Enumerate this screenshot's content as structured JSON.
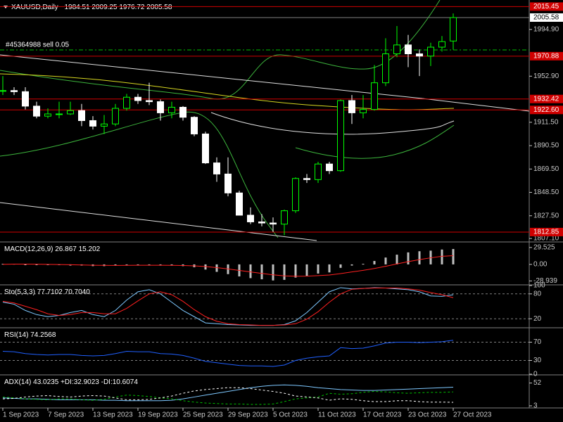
{
  "chart_data": [
    {
      "type": "candlestick",
      "title": "XAUUSD,Daily",
      "open": [
        1940,
        1940,
        1939,
        1926,
        1917,
        1919,
        1919,
        1922,
        1913,
        1908,
        1910,
        1924,
        1934,
        1931,
        1930,
        1920,
        1925,
        1916,
        1901,
        1875,
        1865,
        1848,
        1828,
        1822,
        1821,
        1820,
        1832,
        1861,
        1860,
        1874,
        1868,
        1931,
        1920,
        1923,
        1947,
        1973,
        1981,
        1973,
        1971,
        1979,
        1984.51
      ],
      "high": [
        1953,
        1943,
        1943,
        1930,
        1924,
        1930,
        1930,
        1928,
        1917,
        1918,
        1928,
        1937,
        1937,
        1947,
        1932,
        1930,
        1926,
        1917,
        1903,
        1880,
        1880,
        1850,
        1835,
        1829,
        1826,
        1833,
        1862,
        1865,
        1876,
        1876,
        1932,
        1936,
        1936,
        1963,
        1987,
        1998,
        1990,
        1977,
        1983,
        1989,
        2009.25
      ],
      "low": [
        1936,
        1936,
        1923,
        1915,
        1915,
        1915,
        1918,
        1908,
        1905,
        1901,
        1908,
        1922,
        1928,
        1927,
        1913,
        1915,
        1913,
        1899,
        1874,
        1858,
        1845,
        1828,
        1820,
        1818,
        1813,
        1810,
        1830,
        1857,
        1857,
        1865,
        1867,
        1910,
        1915,
        1922,
        1944,
        1970,
        1961,
        1953,
        1962,
        1975,
        1976.72
      ],
      "close": [
        1940,
        1939,
        1926,
        1917,
        1919,
        1919,
        1922,
        1913,
        1908,
        1910,
        1924,
        1934,
        1931,
        1930,
        1920,
        1925,
        1916,
        1901,
        1875,
        1865,
        1848,
        1828,
        1822,
        1821,
        1820,
        1832,
        1861,
        1860,
        1874,
        1868,
        1931,
        1920,
        1923,
        1947,
        1973,
        1981,
        1973,
        1971,
        1979,
        1984,
        2005.58
      ],
      "bull_color": "#00ff00",
      "bear_color": "#ffffff",
      "ylim": [
        1804.6,
        2020.1
      ],
      "yticks": [
        {
          "value": 1994.9,
          "label": "1994.90"
        },
        {
          "value": 1952.9,
          "label": "1952.90"
        },
        {
          "value": 1911.5,
          "label": "1911.50"
        },
        {
          "value": 1890.5,
          "label": "1890.50"
        },
        {
          "value": 1869.5,
          "label": "1869.50"
        },
        {
          "value": 1848.5,
          "label": "1848.50"
        },
        {
          "value": 1827.5,
          "label": "1827.50"
        },
        {
          "value": 1807.1,
          "label": "1807.10"
        }
      ],
      "levels": [
        {
          "value": 2015.45,
          "color": "#d00000"
        },
        {
          "value": 1970.88,
          "color": "#d00000"
        },
        {
          "value": 1932.42,
          "color": "#d00000"
        },
        {
          "value": 1922.6,
          "label": "1922.60",
          "color": "#d00000"
        },
        {
          "value": 1812.85,
          "color": "#d00000"
        }
      ],
      "order": {
        "text": "#45364988 sell 0.05",
        "value": 1976.5,
        "color": "#00c000"
      },
      "xticks": [
        {
          "value": 0,
          "label": "1 Sep 2023"
        },
        {
          "value": 4,
          "label": "7 Sep 2023"
        },
        {
          "value": 8,
          "label": "13 Sep 2023"
        },
        {
          "value": 12,
          "label": "19 Sep 2023"
        },
        {
          "value": 16,
          "label": "25 Sep 2023"
        },
        {
          "value": 20,
          "label": "29 Sep 2023"
        },
        {
          "value": 24,
          "label": "5 Oct 2023"
        },
        {
          "value": 28,
          "label": "11 Oct 2023"
        },
        {
          "value": 32,
          "label": "17 Oct 2023"
        },
        {
          "value": 36,
          "label": "23 Oct 2023"
        },
        {
          "value": 40,
          "label": "27 Oct 2023"
        }
      ]
    },
    {
      "type": "line",
      "title": "MACD(12,26,9)",
      "readouts": [
        26.867,
        15.202
      ],
      "ylim": [
        -34.5,
        38
      ],
      "yticks": [
        29.525,
        {
          "value": 0,
          "label": "0.00"
        },
        -28.939
      ],
      "series": [
        {
          "kind": "histogram",
          "color": "#c0c0c0",
          "values": [
            1,
            1,
            0,
            -1,
            -1,
            -1,
            -2,
            -2,
            -3,
            -3,
            -2,
            -1,
            -1,
            -1,
            -2,
            -2,
            -3,
            -5,
            -9,
            -13,
            -17,
            -21,
            -24,
            -26,
            -28,
            -27,
            -23,
            -20,
            -16,
            -14,
            -6,
            -2,
            1,
            6,
            12,
            17,
            21,
            23,
            24,
            26,
            26.867
          ]
        },
        {
          "kind": "line",
          "color": "#ff2020",
          "values": [
            0,
            0.5,
            0.5,
            0.3,
            0,
            -0.3,
            -0.6,
            -1,
            -1.4,
            -1.7,
            -1.8,
            -1.7,
            -1.5,
            -1.4,
            -1.5,
            -1.6,
            -1.9,
            -2.5,
            -3.8,
            -5.6,
            -7.9,
            -10.5,
            -13.2,
            -15.8,
            -18.2,
            -20,
            -20.6,
            -20.5,
            -19.6,
            -18.5,
            -16,
            -13.2,
            -10.4,
            -7.1,
            -3.3,
            0.8,
            4.8,
            8.4,
            11.5,
            14.2,
            15.202
          ]
        }
      ]
    },
    {
      "type": "line",
      "title": "Sto(5,3,3)",
      "readouts": [
        77.7102,
        {
          "value": 70.704,
          "label": "70.7040"
        }
      ],
      "ylim": [
        0,
        100
      ],
      "yticks": [
        100,
        80,
        20
      ],
      "levels": [
        80,
        20
      ],
      "series": [
        {
          "kind": "line",
          "color": "#7ec8ff",
          "values": [
            60,
            55,
            40,
            30,
            25,
            28,
            35,
            40,
            30,
            25,
            40,
            65,
            85,
            90,
            80,
            60,
            40,
            25,
            10,
            8,
            6,
            5,
            4,
            4,
            4,
            6,
            15,
            35,
            60,
            85,
            95,
            92,
            93,
            95,
            94,
            92,
            90,
            85,
            75,
            74,
            77.7102
          ]
        },
        {
          "kind": "line",
          "color": "#ff2020",
          "values": [
            62,
            58,
            50,
            42,
            32,
            28,
            30,
            35,
            35,
            32,
            32,
            45,
            63,
            80,
            85,
            78,
            62,
            42,
            25,
            14,
            8,
            6,
            5,
            4,
            4,
            5,
            8,
            19,
            37,
            60,
            80,
            91,
            93,
            94,
            94,
            94,
            92,
            89,
            83,
            78,
            70.704
          ]
        }
      ]
    },
    {
      "type": "line",
      "title": "RSI(14)",
      "readouts": [
        74.2568
      ],
      "ylim": [
        0,
        100
      ],
      "yticks": [
        70,
        30,
        0
      ],
      "levels": [
        70,
        30
      ],
      "series": [
        {
          "kind": "line",
          "color": "#2060ff",
          "values": [
            50,
            49,
            45,
            43,
            42,
            43,
            43,
            41,
            40,
            41,
            45,
            50,
            49,
            49,
            45,
            44,
            41,
            35,
            28,
            25,
            22,
            19,
            18,
            18,
            17,
            20,
            30,
            35,
            38,
            40,
            58,
            56,
            57,
            62,
            68,
            70,
            70,
            69,
            70,
            71,
            74.2568
          ]
        }
      ]
    },
    {
      "type": "line",
      "title": "ADX(14)",
      "readouts": [
        43.0235,
        {
          "value": 32.9023,
          "label": "+DI:32.9023"
        },
        {
          "value": 10.6074,
          "label": "-DI:10.6074"
        }
      ],
      "ylim": [
        0,
        68
      ],
      "yticks": [
        52,
        3
      ],
      "series": [
        {
          "kind": "line",
          "color": "#7ec8ff",
          "values": [
            20,
            19,
            18,
            18,
            17,
            16,
            16,
            16,
            16,
            15,
            15,
            14,
            14,
            14,
            14,
            15,
            18,
            22,
            26,
            30,
            34,
            38,
            42,
            45,
            47,
            48,
            47,
            45,
            42,
            40,
            38,
            37,
            36,
            36,
            37,
            38,
            39,
            40,
            41,
            42,
            43.0235
          ]
        },
        {
          "kind": "dashed",
          "color": "#00c000",
          "values": [
            22,
            20,
            18,
            17,
            16,
            18,
            18,
            16,
            15,
            17,
            22,
            26,
            25,
            23,
            20,
            18,
            14,
            11,
            9,
            8,
            7,
            7,
            6,
            6,
            7,
            12,
            18,
            20,
            22,
            30,
            28,
            29,
            32,
            34,
            33,
            31,
            30,
            31,
            32,
            32,
            32.9023
          ]
        },
        {
          "kind": "dashed",
          "color": "#ffffff",
          "values": [
            18,
            19,
            22,
            24,
            25,
            23,
            22,
            24,
            25,
            24,
            20,
            16,
            16,
            17,
            20,
            24,
            30,
            35,
            38,
            40,
            42,
            42,
            40,
            37,
            34,
            30,
            24,
            22,
            20,
            15,
            18,
            17,
            14,
            12,
            12,
            14,
            14,
            12,
            11,
            11,
            10.6074
          ]
        }
      ]
    }
  ]
}
